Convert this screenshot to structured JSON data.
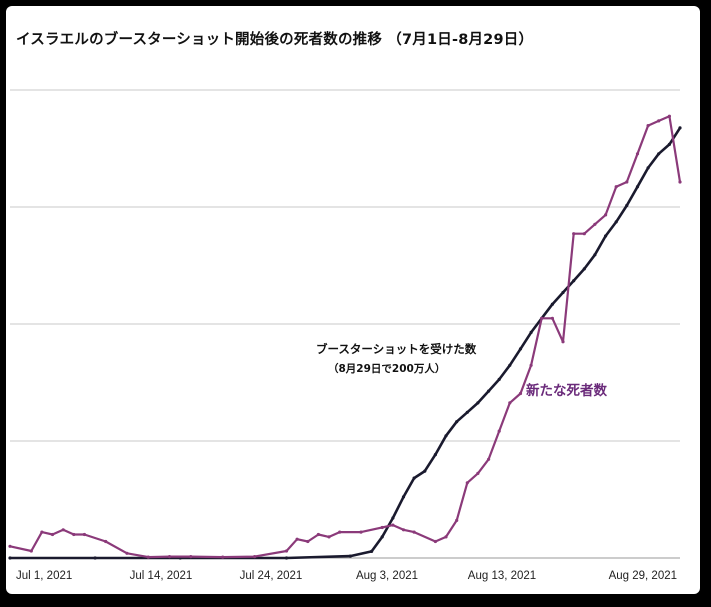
{
  "title": "イスラエルのブースターショット開始後の死者数の推移 （7月1日-8月29日）",
  "chart_data": {
    "type": "line",
    "x_ticks": [
      "Jul 1, 2021",
      "Jul 14, 2021",
      "Jul 24, 2021",
      "Aug 3, 2021",
      "Aug 13, 2021",
      "Aug 29, 2021"
    ],
    "x_start": "2021-06-28",
    "x_end": "2021-08-30",
    "y_relative_max": 100,
    "grid": true,
    "series": [
      {
        "name": "ブースターショットを受けた数",
        "color": "#1a1a2e",
        "dates": [
          "2021-06-28",
          "2021-07-06",
          "2021-07-14",
          "2021-07-24",
          "2021-07-30",
          "2021-08-01",
          "2021-08-02",
          "2021-08-03",
          "2021-08-04",
          "2021-08-05",
          "2021-08-06",
          "2021-08-07",
          "2021-08-08",
          "2021-08-09",
          "2021-08-10",
          "2021-08-11",
          "2021-08-12",
          "2021-08-13",
          "2021-08-14",
          "2021-08-15",
          "2021-08-16",
          "2021-08-17",
          "2021-08-18",
          "2021-08-19",
          "2021-08-20",
          "2021-08-21",
          "2021-08-22",
          "2021-08-23",
          "2021-08-24",
          "2021-08-25",
          "2021-08-26",
          "2021-08-27",
          "2021-08-28",
          "2021-08-29",
          "2021-08-30"
        ],
        "values": [
          0,
          0,
          0,
          0,
          0.4,
          1.4,
          4.5,
          8.5,
          13,
          17,
          18.5,
          22,
          26,
          29,
          31,
          33,
          35.5,
          38,
          41,
          44.5,
          48,
          51,
          54,
          56.5,
          59,
          61.5,
          64.5,
          68.5,
          71.5,
          75,
          79,
          83,
          86,
          88,
          91.5
        ]
      },
      {
        "name": "新たな死者数",
        "color": "#8b3a7a",
        "dates": [
          "2021-06-28",
          "2021-06-30",
          "2021-07-01",
          "2021-07-02",
          "2021-07-03",
          "2021-07-04",
          "2021-07-05",
          "2021-07-07",
          "2021-07-09",
          "2021-07-11",
          "2021-07-13",
          "2021-07-15",
          "2021-07-18",
          "2021-07-21",
          "2021-07-24",
          "2021-07-25",
          "2021-07-26",
          "2021-07-27",
          "2021-07-28",
          "2021-07-29",
          "2021-07-31",
          "2021-08-02",
          "2021-08-03",
          "2021-08-04",
          "2021-08-05",
          "2021-08-07",
          "2021-08-08",
          "2021-08-09",
          "2021-08-10",
          "2021-08-11",
          "2021-08-12",
          "2021-08-13",
          "2021-08-14",
          "2021-08-15",
          "2021-08-16",
          "2021-08-17",
          "2021-08-18",
          "2021-08-19",
          "2021-08-20",
          "2021-08-21",
          "2021-08-22",
          "2021-08-23",
          "2021-08-24",
          "2021-08-25",
          "2021-08-26",
          "2021-08-27",
          "2021-08-28",
          "2021-08-29",
          "2021-08-30"
        ],
        "values": [
          2.5,
          1.5,
          5.5,
          5,
          6,
          5,
          5,
          3.5,
          1,
          0.2,
          0.3,
          0.3,
          0.2,
          0.3,
          1.5,
          4,
          3.5,
          5,
          4.5,
          5.5,
          5.5,
          6.5,
          7,
          6,
          5.5,
          3.5,
          4.5,
          8,
          16,
          18,
          21,
          27,
          33,
          35,
          41,
          51,
          51,
          46,
          69,
          69,
          71,
          73,
          79,
          80,
          86,
          92,
          93,
          94,
          80
        ]
      }
    ],
    "annotations": [
      {
        "text": "ブースターショットを受けた数",
        "series": 0
      },
      {
        "text": "（8月29日で200万人）",
        "series": 0
      },
      {
        "text": "新たな死者数",
        "series": 1
      }
    ]
  }
}
